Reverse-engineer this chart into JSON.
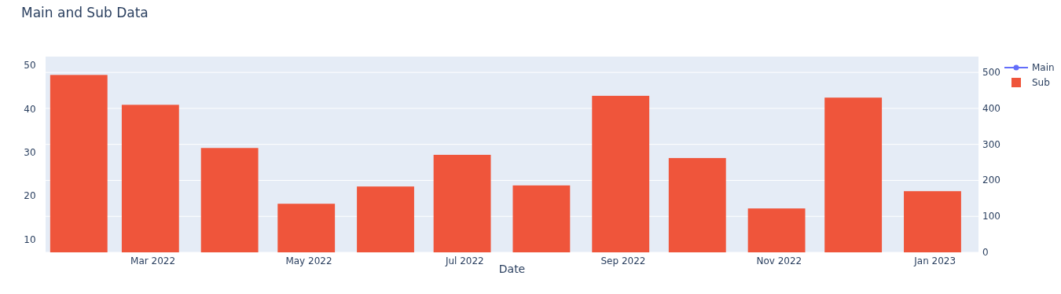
{
  "chart_data": {
    "type": "bar",
    "title": "Main and Sub Data",
    "xlabel": "Date",
    "x": [
      "2022-01-31",
      "2022-02-28",
      "2022-03-31",
      "2022-04-30",
      "2022-05-31",
      "2022-06-30",
      "2022-07-31",
      "2022-08-31",
      "2022-09-30",
      "2022-10-31",
      "2022-11-30",
      "2022-12-31"
    ],
    "series": [
      {
        "name": "Main",
        "type": "line",
        "color": "#636efa",
        "marker": "circle",
        "values": [
          null,
          null,
          null,
          null,
          null,
          null,
          null,
          null,
          null,
          null,
          null,
          null
        ]
      },
      {
        "name": "Sub",
        "axis": "y2",
        "color": "#ef553b",
        "values": [
          493,
          410,
          290,
          135,
          183,
          271,
          186,
          435,
          262,
          122,
          430,
          170
        ]
      }
    ],
    "xlim": [
      "2022-01-18",
      "2023-01-18"
    ],
    "xticks": [
      {
        "value": "2022-03-01",
        "label": "Mar 2022"
      },
      {
        "value": "2022-05-01",
        "label": "May 2022"
      },
      {
        "value": "2022-07-01",
        "label": "Jul 2022"
      },
      {
        "value": "2022-09-01",
        "label": "Sep 2022"
      },
      {
        "value": "2022-11-01",
        "label": "Nov 2022"
      },
      {
        "value": "2023-01-01",
        "label": "Jan 2023"
      }
    ],
    "ylim": [
      7.1,
      52
    ],
    "yticks": [
      10,
      20,
      30,
      40,
      50
    ],
    "y2lim": [
      0,
      544
    ],
    "y2ticks": [
      0,
      100,
      200,
      300,
      400,
      500
    ],
    "grid": "y2",
    "legend": "top right"
  }
}
